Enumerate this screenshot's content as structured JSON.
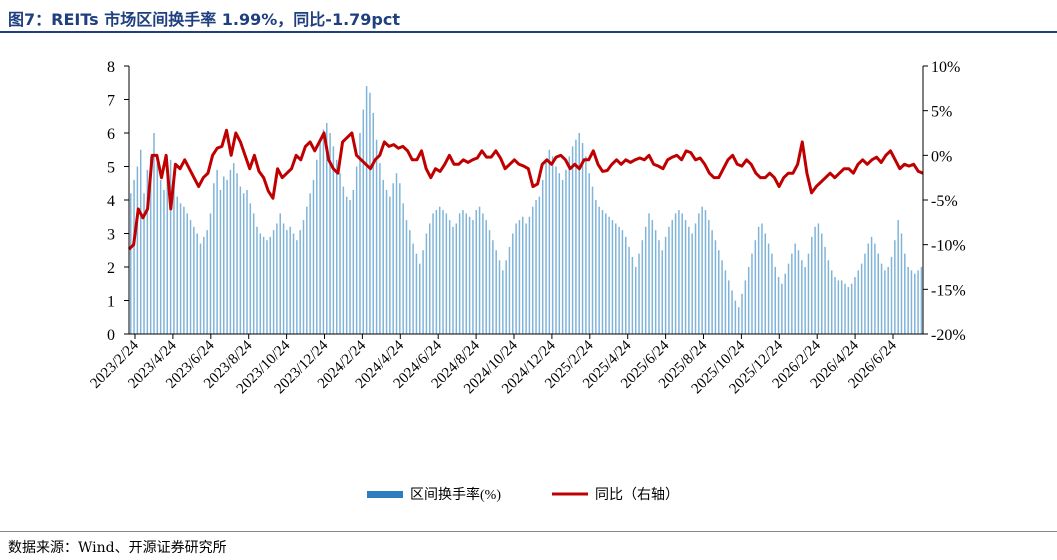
{
  "title": "图7：REITs 市场区间换手率 1.99%，同比-1.79pct",
  "source": "数据来源：Wind、开源证券研究所",
  "colors": {
    "title": "#1f3f7f",
    "bar": "#7fb4d8",
    "line": "#c00000",
    "legend_bar": "#2e7cc0"
  },
  "chart_data": {
    "type": "bar+line",
    "left_axis": {
      "ylim": [
        0,
        8
      ],
      "ticks": [
        "0",
        "1",
        "2",
        "3",
        "4",
        "5",
        "6",
        "7",
        "8"
      ]
    },
    "right_axis": {
      "ylim": [
        -20,
        10
      ],
      "ticks": [
        "-20%",
        "-15%",
        "-10%",
        "-5%",
        "0%",
        "5%",
        "10%"
      ]
    },
    "x_date_range": [
      "2023-02-01",
      "2026-07-31"
    ],
    "x_tick_labels": [
      "2023/2/24",
      "2023/4/24",
      "2023/6/24",
      "2023/8/24",
      "2023/10/24",
      "2023/12/24",
      "2024/2/24",
      "2024/4/24",
      "2024/6/24",
      "2024/8/24",
      "2024/10/24",
      "2024/12/24",
      "2025/2/24",
      "2025/4/24",
      "2025/6/24",
      "2025/8/24",
      "2025/10/24",
      "2025/12/24",
      "2026/2/24",
      "2026/4/24",
      "2026/6/24"
    ],
    "legend": [
      "区间换手率(%)",
      "同比（右轴）"
    ],
    "series": [
      {
        "name": "区间换手率(%)",
        "axis": "left",
        "type": "bar",
        "values": [
          4.2,
          4.6,
          5.0,
          5.5,
          4.2,
          4.9,
          5.3,
          6.0,
          5.1,
          4.6,
          4.3,
          5.0,
          5.2,
          4.5,
          4.1,
          3.9,
          3.8,
          3.6,
          3.4,
          3.2,
          3.0,
          2.7,
          2.9,
          3.1,
          3.6,
          4.5,
          4.9,
          4.3,
          4.7,
          4.6,
          4.9,
          5.1,
          4.8,
          4.4,
          4.2,
          4.3,
          3.9,
          3.6,
          3.2,
          3.0,
          2.9,
          2.8,
          2.9,
          3.1,
          3.3,
          3.6,
          3.3,
          3.1,
          3.2,
          3.0,
          2.8,
          3.1,
          3.4,
          3.8,
          4.2,
          4.6,
          5.2,
          5.8,
          6.1,
          6.3,
          6.0,
          5.6,
          5.2,
          4.8,
          4.4,
          4.1,
          4.0,
          4.3,
          5.0,
          6.0,
          6.7,
          7.4,
          7.2,
          6.6,
          5.8,
          5.1,
          4.6,
          4.3,
          4.1,
          4.5,
          4.8,
          4.5,
          3.9,
          3.4,
          3.1,
          2.7,
          2.4,
          2.1,
          2.5,
          3.0,
          3.3,
          3.6,
          3.7,
          3.8,
          3.7,
          3.6,
          3.4,
          3.2,
          3.3,
          3.6,
          3.7,
          3.6,
          3.5,
          3.4,
          3.7,
          3.8,
          3.6,
          3.4,
          3.1,
          2.8,
          2.5,
          2.2,
          1.9,
          2.2,
          2.6,
          3.0,
          3.3,
          3.4,
          3.5,
          3.3,
          3.5,
          3.8,
          4.0,
          4.1,
          4.6,
          5.2,
          5.5,
          5.3,
          5.0,
          4.8,
          4.6,
          4.9,
          5.3,
          5.6,
          5.8,
          6.0,
          5.7,
          5.3,
          4.8,
          4.4,
          4.0,
          3.8,
          3.7,
          3.6,
          3.5,
          3.4,
          3.3,
          3.2,
          3.1,
          2.9,
          2.6,
          2.3,
          2.0,
          2.4,
          2.8,
          3.2,
          3.6,
          3.4,
          3.1,
          2.8,
          2.5,
          2.9,
          3.2,
          3.4,
          3.6,
          3.7,
          3.6,
          3.4,
          3.2,
          3.0,
          3.3,
          3.6,
          3.8,
          3.7,
          3.4,
          3.1,
          2.8,
          2.5,
          2.2,
          1.9,
          1.6,
          1.3,
          1.0,
          0.8,
          1.2,
          1.6,
          2.0,
          2.4,
          2.8,
          3.2,
          3.3,
          3.0,
          2.7,
          2.4,
          2.0,
          1.7,
          1.5,
          1.8,
          2.1,
          2.4,
          2.7,
          2.5,
          2.2,
          2.0,
          2.4,
          2.9,
          3.2,
          3.3,
          3.0,
          2.6,
          2.2,
          1.9,
          1.7,
          1.6,
          1.6,
          1.5,
          1.4,
          1.5,
          1.7,
          1.9,
          2.1,
          2.4,
          2.7,
          2.9,
          2.7,
          2.4,
          2.1,
          1.9,
          2.0,
          2.3,
          2.8,
          3.4,
          3.0,
          2.4,
          2.0,
          1.9,
          1.8,
          1.9,
          2.0
        ]
      },
      {
        "name": "同比（右轴）",
        "axis": "right",
        "type": "line",
        "values": [
          -10.5,
          -10,
          -6,
          -7,
          -6,
          0,
          0,
          -2.5,
          0,
          -6,
          -1,
          -1.5,
          -0.5,
          -1.5,
          -2.5,
          -3.5,
          -2.5,
          -2,
          0,
          0.8,
          1,
          2.8,
          0,
          2.5,
          1.5,
          0,
          -1.5,
          0,
          -1.8,
          -2.5,
          -4,
          -4.8,
          -1.5,
          -2.5,
          -2,
          -1.5,
          0,
          -0.5,
          1,
          1.5,
          0.5,
          1.5,
          2.5,
          -0.5,
          -1.5,
          -2,
          1.5,
          2,
          2.5,
          0,
          -0.5,
          -1,
          -1.5,
          -0.5,
          0,
          1.5,
          1,
          1.2,
          0.8,
          1,
          0.5,
          -0.5,
          -0.5,
          0.5,
          -1.5,
          -2.5,
          -1.5,
          -1.8,
          -1,
          0,
          -1,
          -1,
          -0.5,
          -0.8,
          -0.5,
          -0.3,
          0.5,
          -0.2,
          -0.2,
          0.5,
          -0.3,
          -1.5,
          -1,
          -0.5,
          -1,
          -1.2,
          -1.5,
          -3.5,
          -3.2,
          -1,
          -0.5,
          -1,
          -0.2,
          0,
          -0.5,
          -1.5,
          -1,
          -1.5,
          -0.5,
          -0.5,
          0.5,
          -1,
          -1.8,
          -1.7,
          -1,
          -0.5,
          -1,
          -0.5,
          -0.8,
          -0.5,
          -0.3,
          -0.5,
          0,
          -1,
          -1.2,
          -1.5,
          -0.5,
          -0.2,
          0,
          -0.5,
          0.5,
          0.3,
          -0.5,
          -0.3,
          -1,
          -2,
          -2.5,
          -2.5,
          -1.5,
          -0.5,
          0,
          -1,
          -1.2,
          -0.5,
          -1,
          -2,
          -2.5,
          -2.5,
          -2,
          -2.5,
          -3.5,
          -2.5,
          -2,
          -2,
          -1,
          1.5,
          -2,
          -4.2,
          -3.5,
          -3,
          -2.5,
          -2,
          -2.5,
          -2,
          -1.5,
          -1.5,
          -2,
          -1,
          -0.5,
          -1,
          -0.5,
          -0.2,
          -0.8,
          0,
          0.5,
          -0.5,
          -1.5,
          -1,
          -1.2,
          -1,
          -1.8,
          -2
        ]
      }
    ]
  }
}
